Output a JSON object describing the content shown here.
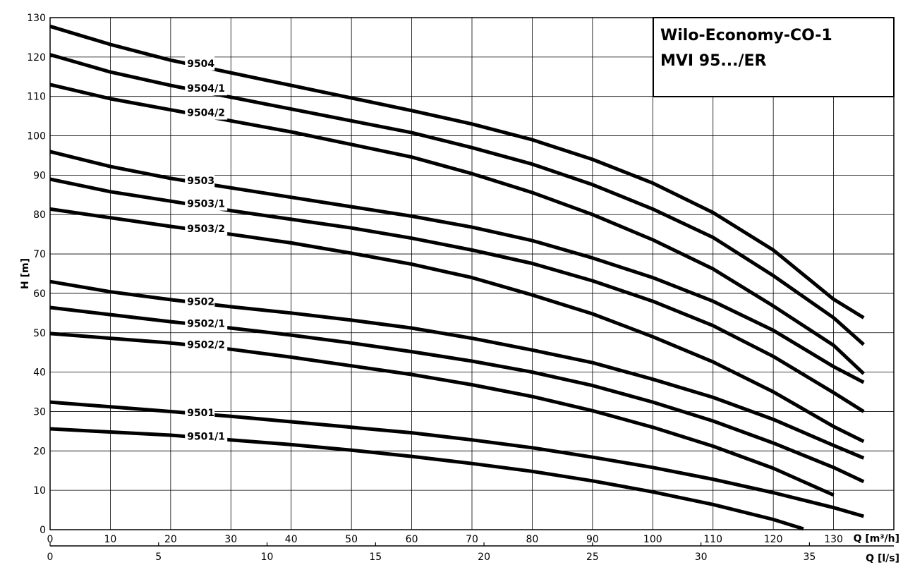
{
  "chart_data": {
    "type": "line",
    "title_lines": [
      "Wilo-Economy-CO-1",
      "MVI 95.../ER"
    ],
    "ylabel": "H [m]",
    "xlabel": "Q [m³/h]",
    "x2label": "Q [l/s]",
    "xlim": [
      0,
      140
    ],
    "ylim": [
      0,
      130
    ],
    "x_ticks": [
      0,
      10,
      20,
      30,
      40,
      50,
      60,
      70,
      80,
      90,
      100,
      110,
      120,
      130
    ],
    "y_ticks": [
      0,
      10,
      20,
      30,
      40,
      50,
      60,
      70,
      80,
      90,
      100,
      110,
      120,
      130
    ],
    "x2_ticks": [
      0,
      5,
      10,
      15,
      20,
      25,
      30,
      35
    ],
    "x2_factor": 3.6,
    "grid": true,
    "series": [
      {
        "name": "9504",
        "label_x": 22.5,
        "points": [
          [
            0,
            127.8
          ],
          [
            10,
            123.2
          ],
          [
            20,
            119.2
          ],
          [
            30,
            116.0
          ],
          [
            40,
            112.8
          ],
          [
            50,
            109.6
          ],
          [
            60,
            106.4
          ],
          [
            70,
            103.0
          ],
          [
            80,
            99.0
          ],
          [
            90,
            94.0
          ],
          [
            100,
            88.0
          ],
          [
            110,
            80.5
          ],
          [
            120,
            71.0
          ],
          [
            130,
            58.5
          ],
          [
            135,
            53.8
          ]
        ]
      },
      {
        "name": "9504/1",
        "label_x": 22.5,
        "points": [
          [
            0,
            120.6
          ],
          [
            10,
            116.2
          ],
          [
            20,
            112.8
          ],
          [
            30,
            109.8
          ],
          [
            40,
            106.8
          ],
          [
            50,
            103.8
          ],
          [
            60,
            100.8
          ],
          [
            70,
            97.0
          ],
          [
            80,
            92.8
          ],
          [
            90,
            87.6
          ],
          [
            100,
            81.4
          ],
          [
            110,
            74.2
          ],
          [
            120,
            64.5
          ],
          [
            130,
            53.8
          ],
          [
            135,
            47.0
          ]
        ]
      },
      {
        "name": "9504/2",
        "label_x": 22.5,
        "points": [
          [
            0,
            113.0
          ],
          [
            10,
            109.4
          ],
          [
            20,
            106.6
          ],
          [
            30,
            103.8
          ],
          [
            40,
            101.0
          ],
          [
            50,
            97.8
          ],
          [
            60,
            94.6
          ],
          [
            70,
            90.4
          ],
          [
            80,
            85.6
          ],
          [
            90,
            80.0
          ],
          [
            100,
            73.6
          ],
          [
            110,
            66.2
          ],
          [
            120,
            56.8
          ],
          [
            130,
            46.8
          ],
          [
            135,
            39.6
          ]
        ]
      },
      {
        "name": "9503",
        "label_x": 22.5,
        "points": [
          [
            0,
            96.0
          ],
          [
            10,
            92.2
          ],
          [
            20,
            89.2
          ],
          [
            30,
            86.8
          ],
          [
            40,
            84.4
          ],
          [
            50,
            82.0
          ],
          [
            60,
            79.6
          ],
          [
            70,
            76.8
          ],
          [
            80,
            73.4
          ],
          [
            90,
            69.0
          ],
          [
            100,
            64.0
          ],
          [
            110,
            58.0
          ],
          [
            120,
            50.6
          ],
          [
            130,
            41.4
          ],
          [
            135,
            37.4
          ]
        ]
      },
      {
        "name": "9503/1",
        "label_x": 22.5,
        "points": [
          [
            0,
            89.0
          ],
          [
            10,
            85.8
          ],
          [
            20,
            83.4
          ],
          [
            30,
            81.0
          ],
          [
            40,
            78.8
          ],
          [
            50,
            76.6
          ],
          [
            60,
            74.0
          ],
          [
            70,
            71.0
          ],
          [
            80,
            67.6
          ],
          [
            90,
            63.2
          ],
          [
            100,
            58.0
          ],
          [
            110,
            51.8
          ],
          [
            120,
            44.0
          ],
          [
            130,
            34.8
          ],
          [
            135,
            30.0
          ]
        ]
      },
      {
        "name": "9503/2",
        "label_x": 22.5,
        "points": [
          [
            0,
            81.4
          ],
          [
            10,
            79.2
          ],
          [
            20,
            77.0
          ],
          [
            30,
            75.0
          ],
          [
            40,
            72.8
          ],
          [
            50,
            70.2
          ],
          [
            60,
            67.4
          ],
          [
            70,
            64.0
          ],
          [
            80,
            59.6
          ],
          [
            90,
            54.8
          ],
          [
            100,
            49.0
          ],
          [
            110,
            42.6
          ],
          [
            120,
            35.0
          ],
          [
            130,
            26.2
          ],
          [
            135,
            22.4
          ]
        ]
      },
      {
        "name": "9502",
        "label_x": 22.5,
        "points": [
          [
            0,
            63.0
          ],
          [
            10,
            60.4
          ],
          [
            20,
            58.4
          ],
          [
            30,
            56.6
          ],
          [
            40,
            55.0
          ],
          [
            50,
            53.2
          ],
          [
            60,
            51.2
          ],
          [
            70,
            48.6
          ],
          [
            80,
            45.6
          ],
          [
            90,
            42.4
          ],
          [
            100,
            38.2
          ],
          [
            110,
            33.6
          ],
          [
            120,
            28.0
          ],
          [
            130,
            21.4
          ],
          [
            135,
            18.2
          ]
        ]
      },
      {
        "name": "9502/1",
        "label_x": 22.5,
        "points": [
          [
            0,
            56.4
          ],
          [
            10,
            54.6
          ],
          [
            20,
            52.8
          ],
          [
            30,
            51.2
          ],
          [
            40,
            49.4
          ],
          [
            50,
            47.4
          ],
          [
            60,
            45.2
          ],
          [
            70,
            42.8
          ],
          [
            80,
            40.0
          ],
          [
            90,
            36.6
          ],
          [
            100,
            32.4
          ],
          [
            110,
            27.6
          ],
          [
            120,
            22.0
          ],
          [
            130,
            15.8
          ],
          [
            135,
            12.2
          ]
        ]
      },
      {
        "name": "9502/2",
        "label_x": 22.5,
        "points": [
          [
            0,
            49.8
          ],
          [
            10,
            48.6
          ],
          [
            20,
            47.4
          ],
          [
            30,
            45.8
          ],
          [
            40,
            43.8
          ],
          [
            50,
            41.6
          ],
          [
            60,
            39.4
          ],
          [
            70,
            36.8
          ],
          [
            80,
            33.8
          ],
          [
            90,
            30.2
          ],
          [
            100,
            26.0
          ],
          [
            110,
            21.2
          ],
          [
            120,
            15.6
          ],
          [
            130,
            8.8
          ]
        ]
      },
      {
        "name": "9501",
        "label_x": 22.5,
        "points": [
          [
            0,
            32.4
          ],
          [
            10,
            31.2
          ],
          [
            20,
            30.0
          ],
          [
            30,
            28.8
          ],
          [
            40,
            27.4
          ],
          [
            50,
            26.0
          ],
          [
            60,
            24.6
          ],
          [
            70,
            22.8
          ],
          [
            80,
            20.8
          ],
          [
            90,
            18.4
          ],
          [
            100,
            15.8
          ],
          [
            110,
            12.8
          ],
          [
            120,
            9.4
          ],
          [
            130,
            5.6
          ],
          [
            135,
            3.4
          ]
        ]
      },
      {
        "name": "9501/1",
        "label_x": 22.5,
        "points": [
          [
            0,
            25.6
          ],
          [
            10,
            24.8
          ],
          [
            20,
            24.0
          ],
          [
            30,
            22.8
          ],
          [
            40,
            21.6
          ],
          [
            50,
            20.2
          ],
          [
            60,
            18.6
          ],
          [
            70,
            16.8
          ],
          [
            80,
            14.8
          ],
          [
            90,
            12.4
          ],
          [
            100,
            9.6
          ],
          [
            110,
            6.4
          ],
          [
            120,
            2.6
          ],
          [
            125,
            0.2
          ]
        ]
      }
    ]
  }
}
